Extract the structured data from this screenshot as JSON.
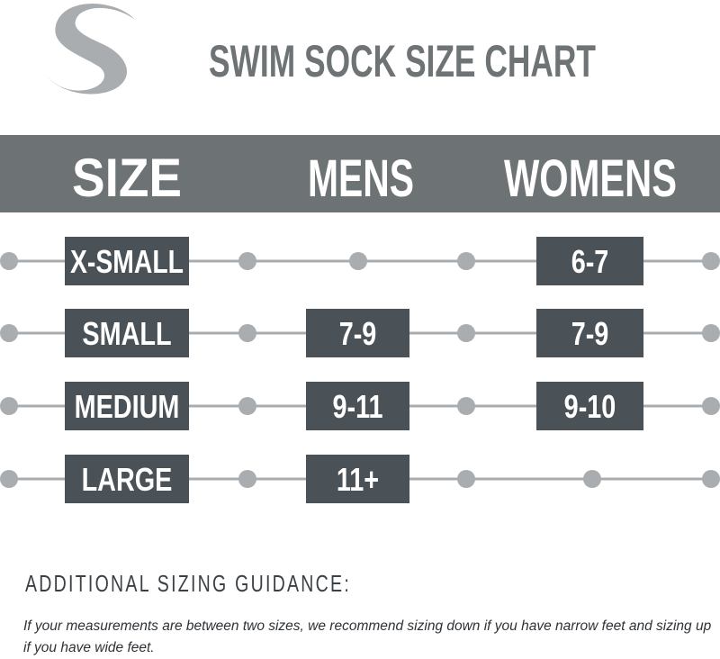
{
  "header": {
    "title": "SWIM SOCK SIZE CHART"
  },
  "table": {
    "columns": [
      "SIZE",
      "MENS",
      "WOMENS"
    ],
    "rows": [
      {
        "size": "X-SMALL",
        "womens": "6-7"
      },
      {
        "size": "SMALL",
        "mens": "7-9",
        "womens": "7-9"
      },
      {
        "size": "MEDIUM",
        "mens": "9-11",
        "womens": "9-10"
      },
      {
        "size": "LARGE",
        "mens": "11+"
      }
    ]
  },
  "guidance": {
    "title": "ADDITIONAL SIZING GUIDANCE:",
    "text": "If your measurements are between two sizes, we recommend sizing down if you have narrow feet and sizing up if you have wide feet."
  }
}
